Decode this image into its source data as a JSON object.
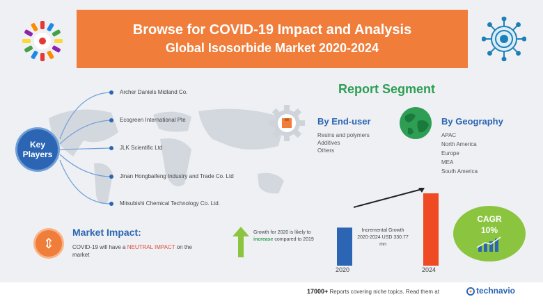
{
  "banner": {
    "line1": "Browse for COVID-19 Impact and Analysis",
    "line2": "Global Isosorbide Market 2020-2024"
  },
  "key_players": {
    "label_line1": "Key",
    "label_line2": "Players",
    "items": [
      "Archer Daniels Midland Co.",
      "Ecogreen International Pte",
      "JLK Scientific Ltd",
      "Jinan Hongbaifeng Industry and Trade Co. Ltd",
      "Mitsubishi Chemical Technology Co. Ltd."
    ]
  },
  "report_segment": {
    "title": "Report Segment",
    "end_user": {
      "heading": "By End-user",
      "items": [
        "Resins and polymers",
        "Additives",
        "Others"
      ]
    },
    "geography": {
      "heading": "By Geography",
      "items": [
        "APAC",
        "North America",
        "Europe",
        "MEA",
        "South America"
      ]
    }
  },
  "market_impact": {
    "title": "Market Impact:",
    "text_before": "COVID-19 will have a",
    "text_highlight": "NEUTRAL IMPACT",
    "text_after": "on the market"
  },
  "growth": {
    "text_before": "Growth for 2020 is likely to",
    "text_highlight": "increase",
    "text_after": "compared to 2019"
  },
  "chart_data": {
    "type": "bar",
    "categories": [
      "2020",
      "2024"
    ],
    "values": [
      1,
      1.9
    ],
    "annotation": "Incremental Growth 2020-2024 USD 330.77 mn",
    "colors": [
      "#2b65b3",
      "#f04a24"
    ]
  },
  "cagr": {
    "label": "CAGR",
    "value": "10%"
  },
  "footer": {
    "count": "17000+",
    "text": "Reports covering niche topics. Read them at",
    "brand": "technavio"
  },
  "colors": {
    "banner": "#f07d3a",
    "blue": "#2b65b3",
    "green": "#2e9e55",
    "cagr": "#8bc53f"
  }
}
